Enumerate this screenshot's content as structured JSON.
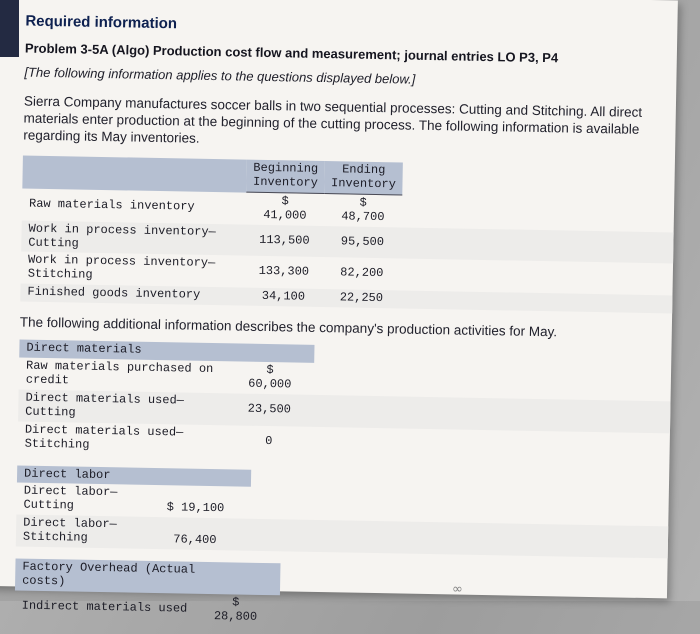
{
  "colors": {
    "header_shade": "#b5bfd1",
    "page_bg": "#f6f4f1",
    "heading_navy": "#0e2150"
  },
  "header": {
    "required_info": "Required information",
    "problem_title": "Problem 3-5A (Algo) Production cost flow and measurement; journal entries LO P3, P4",
    "applies_note": "[The following information applies to the questions displayed below.]"
  },
  "intro": "Sierra Company manufactures soccer balls in two sequential processes: Cutting and Stitching. All direct materials enter production at the beginning of the cutting process. The following information is available regarding its May inventories.",
  "additional_info_text": "The following additional information describes the company's production activities for May.",
  "inventory_table": {
    "headers": {
      "beginning": "Beginning Inventory",
      "ending": "Ending Inventory"
    },
    "rows": [
      {
        "label": "Raw materials inventory",
        "begin_dollar": "$",
        "begin": "41,000",
        "end_dollar": "$",
        "end": "48,700"
      },
      {
        "label": "Work in process inventory—Cutting",
        "begin": "113,500",
        "end": "95,500"
      },
      {
        "label": "Work in process inventory—Stitching",
        "begin": "133,300",
        "end": "82,200"
      },
      {
        "label": "Finished goods inventory",
        "begin": "34,100",
        "end": "22,250"
      }
    ]
  },
  "direct_materials": {
    "title": "Direct materials",
    "rows": [
      {
        "label": "Raw materials purchased on credit",
        "dollar": "$",
        "value": "60,000"
      },
      {
        "label": "Direct materials used—Cutting",
        "value": "23,500"
      },
      {
        "label": "Direct materials used—Stitching",
        "value": "0"
      }
    ]
  },
  "direct_labor": {
    "title": "Direct labor",
    "rows": [
      {
        "label": "Direct labor—Cutting",
        "value": "$ 19,100"
      },
      {
        "label": "Direct labor—Stitching",
        "value": "76,400"
      }
    ]
  },
  "factory_overhead": {
    "title": "Factory Overhead (Actual costs)",
    "rows": [
      {
        "label": "Indirect materials used",
        "dollar": "$",
        "value": "28,800"
      }
    ]
  },
  "watermark": "∞"
}
